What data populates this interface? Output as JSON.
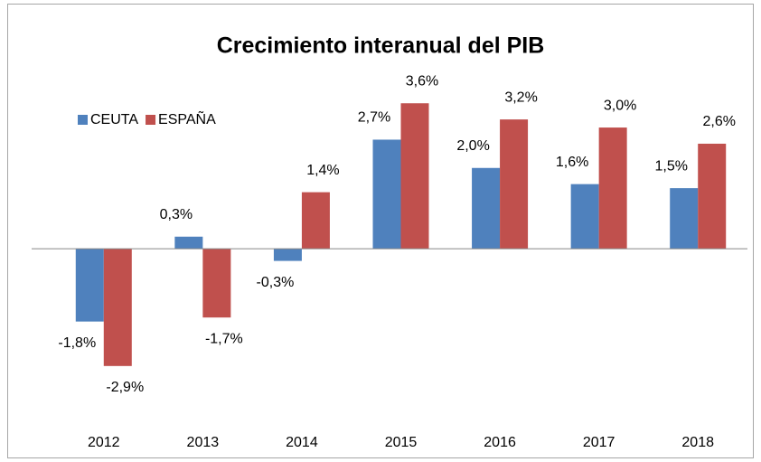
{
  "chart_data": {
    "type": "bar",
    "title": "Crecimiento interanual del PIB",
    "categories": [
      "2012",
      "2013",
      "2014",
      "2015",
      "2016",
      "2017",
      "2018"
    ],
    "series": [
      {
        "name": "CEUTA",
        "color": "#4f81bd",
        "values": [
          -1.8,
          0.3,
          -0.3,
          2.7,
          2.0,
          1.6,
          1.5
        ],
        "value_labels": [
          "-1,8%",
          "0,3%",
          "-0,3%",
          "2,7%",
          "2,0%",
          "1,6%",
          "1,5%"
        ]
      },
      {
        "name": "ESPAÑA",
        "color": "#c0504d",
        "values": [
          -2.9,
          -1.7,
          1.4,
          3.6,
          3.2,
          3.0,
          2.6
        ],
        "value_labels": [
          "-2,9%",
          "-1,7%",
          "1,4%",
          "3,6%",
          "3,2%",
          "3,0%",
          "2,6%"
        ]
      }
    ],
    "ylim": [
      -4,
      4.5
    ],
    "legend": "top-left"
  }
}
